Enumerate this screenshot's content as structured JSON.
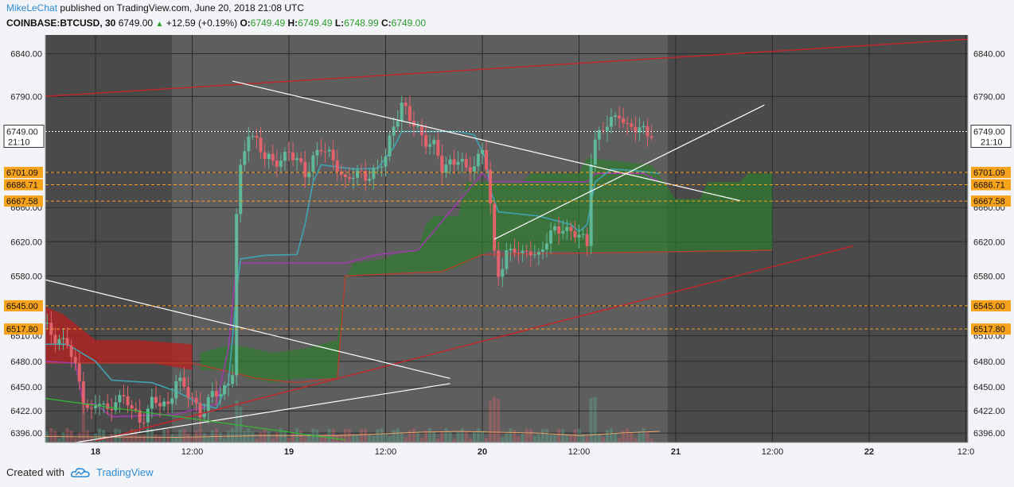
{
  "header": {
    "author": "MikeLeChat",
    "published_text": "published on TradingView.com, June 20, 2018 21:08 UTC",
    "symbol": "COINBASE:BTCUSD, 30",
    "last": "6749.00",
    "change": "+12.59 (+0.19%)",
    "o_label": "O:",
    "o": "6749.49",
    "h_label": "H:",
    "h": "6749.49",
    "l_label": "L:",
    "l": "6748.99",
    "c_label": "C:",
    "c": "6749.00"
  },
  "footer": {
    "created_with": "Created with",
    "brand": "TradingView"
  },
  "colors": {
    "plot_bg": "#4a4a4a",
    "shade_bg": "#5e5e5e",
    "bull": "#5fb897",
    "bear": "#e2626c",
    "cloud_green": "#2e7a2e",
    "cloud_red": "#b91f1f",
    "tenkan": "#3fa4b4",
    "kijun": "#9b3da8",
    "level_orange": "#f7a21b",
    "trend_red": "#c0262c"
  },
  "chart_data": {
    "type": "candlestick",
    "title": "",
    "xlabel": "",
    "ylabel": "",
    "ylim": [
      6385,
      6862
    ],
    "yticks": [
      6396,
      6422,
      6450,
      6480,
      6510,
      6545,
      6580,
      6620,
      6660,
      6701.09,
      6749,
      6790,
      6840
    ],
    "ytick_labels_left": [
      "6396.00",
      "6422.00",
      "6450.00",
      "6480.00",
      "6510.00",
      "6580.00",
      "6620.00",
      "6660.00",
      "6790.00",
      "6840.00"
    ],
    "ytick_labels_right": [
      "6396.00",
      "6422.00",
      "6450.00",
      "6480.00",
      "6510.00",
      "6580.00",
      "6620.00",
      "6660.00",
      "6790.00",
      "6840.00"
    ],
    "xticks": [
      {
        "label": "18",
        "bold": true,
        "t": 0
      },
      {
        "label": "12:00",
        "t": 24
      },
      {
        "label": "19",
        "bold": true,
        "t": 48
      },
      {
        "label": "12:00",
        "t": 72
      },
      {
        "label": "20",
        "bold": true,
        "t": 96
      },
      {
        "label": "12:00",
        "t": 120
      },
      {
        "label": "21",
        "bold": true,
        "t": 144
      },
      {
        "label": "12:00",
        "t": 168
      },
      {
        "label": "22",
        "bold": true,
        "t": 192
      },
      {
        "label": "12:0",
        "t": 216
      }
    ],
    "price_line": {
      "value": 6749.0,
      "label": "6749.00",
      "time_label": "21:10"
    },
    "levels": [
      {
        "value": 6701.09,
        "label": "6701.09"
      },
      {
        "value": 6686.71,
        "label": "6686.71"
      },
      {
        "value": 6667.58,
        "label": "6667.58"
      },
      {
        "value": 6545.0,
        "label": "6545.00"
      },
      {
        "value": 6517.8,
        "label": "6517.80"
      }
    ],
    "shaded_range": [
      19,
      142
    ],
    "ohlc_anchor_close": [
      [
        -13,
        6520
      ],
      [
        -10,
        6510
      ],
      [
        -7,
        6500
      ],
      [
        -5,
        6470
      ],
      [
        -3,
        6440
      ],
      [
        -1,
        6420
      ],
      [
        1,
        6432
      ],
      [
        3,
        6420
      ],
      [
        5,
        6440
      ],
      [
        8,
        6430
      ],
      [
        11,
        6412
      ],
      [
        14,
        6430
      ],
      [
        18,
        6430
      ],
      [
        20,
        6460
      ],
      [
        22,
        6445
      ],
      [
        24,
        6438
      ],
      [
        26,
        6420
      ],
      [
        28,
        6432
      ],
      [
        31,
        6446
      ],
      [
        33,
        6455
      ],
      [
        34,
        6470
      ],
      [
        35,
        6650
      ],
      [
        36,
        6700
      ],
      [
        38,
        6750
      ],
      [
        40,
        6740
      ],
      [
        42,
        6718
      ],
      [
        44,
        6710
      ],
      [
        46,
        6720
      ],
      [
        48,
        6725
      ],
      [
        50,
        6712
      ],
      [
        52,
        6700
      ],
      [
        54,
        6720
      ],
      [
        56,
        6728
      ],
      [
        58,
        6720
      ],
      [
        60,
        6712
      ],
      [
        62,
        6690
      ],
      [
        64,
        6696
      ],
      [
        66,
        6700
      ],
      [
        68,
        6700
      ],
      [
        70,
        6702
      ],
      [
        72,
        6718
      ],
      [
        73,
        6740
      ],
      [
        74,
        6760
      ],
      [
        76,
        6780
      ],
      [
        78,
        6762
      ],
      [
        80,
        6752
      ],
      [
        82,
        6740
      ],
      [
        84,
        6730
      ],
      [
        86,
        6705
      ],
      [
        88,
        6715
      ],
      [
        90,
        6718
      ],
      [
        92,
        6700
      ],
      [
        94,
        6712
      ],
      [
        96,
        6730
      ],
      [
        97,
        6710
      ],
      [
        98,
        6660
      ],
      [
        99,
        6600
      ],
      [
        100,
        6580
      ],
      [
        102,
        6610
      ],
      [
        104,
        6612
      ],
      [
        106,
        6600
      ],
      [
        108,
        6612
      ],
      [
        110,
        6605
      ],
      [
        112,
        6620
      ],
      [
        114,
        6632
      ],
      [
        116,
        6640
      ],
      [
        118,
        6630
      ],
      [
        120,
        6625
      ],
      [
        122,
        6618
      ],
      [
        123,
        6720
      ],
      [
        124,
        6740
      ],
      [
        126,
        6750
      ],
      [
        128,
        6760
      ],
      [
        130,
        6774
      ],
      [
        132,
        6752
      ],
      [
        134,
        6750
      ],
      [
        136,
        6752
      ],
      [
        138,
        6749
      ]
    ],
    "indicators": [
      "Ichimoku Cloud",
      "Volume"
    ]
  }
}
